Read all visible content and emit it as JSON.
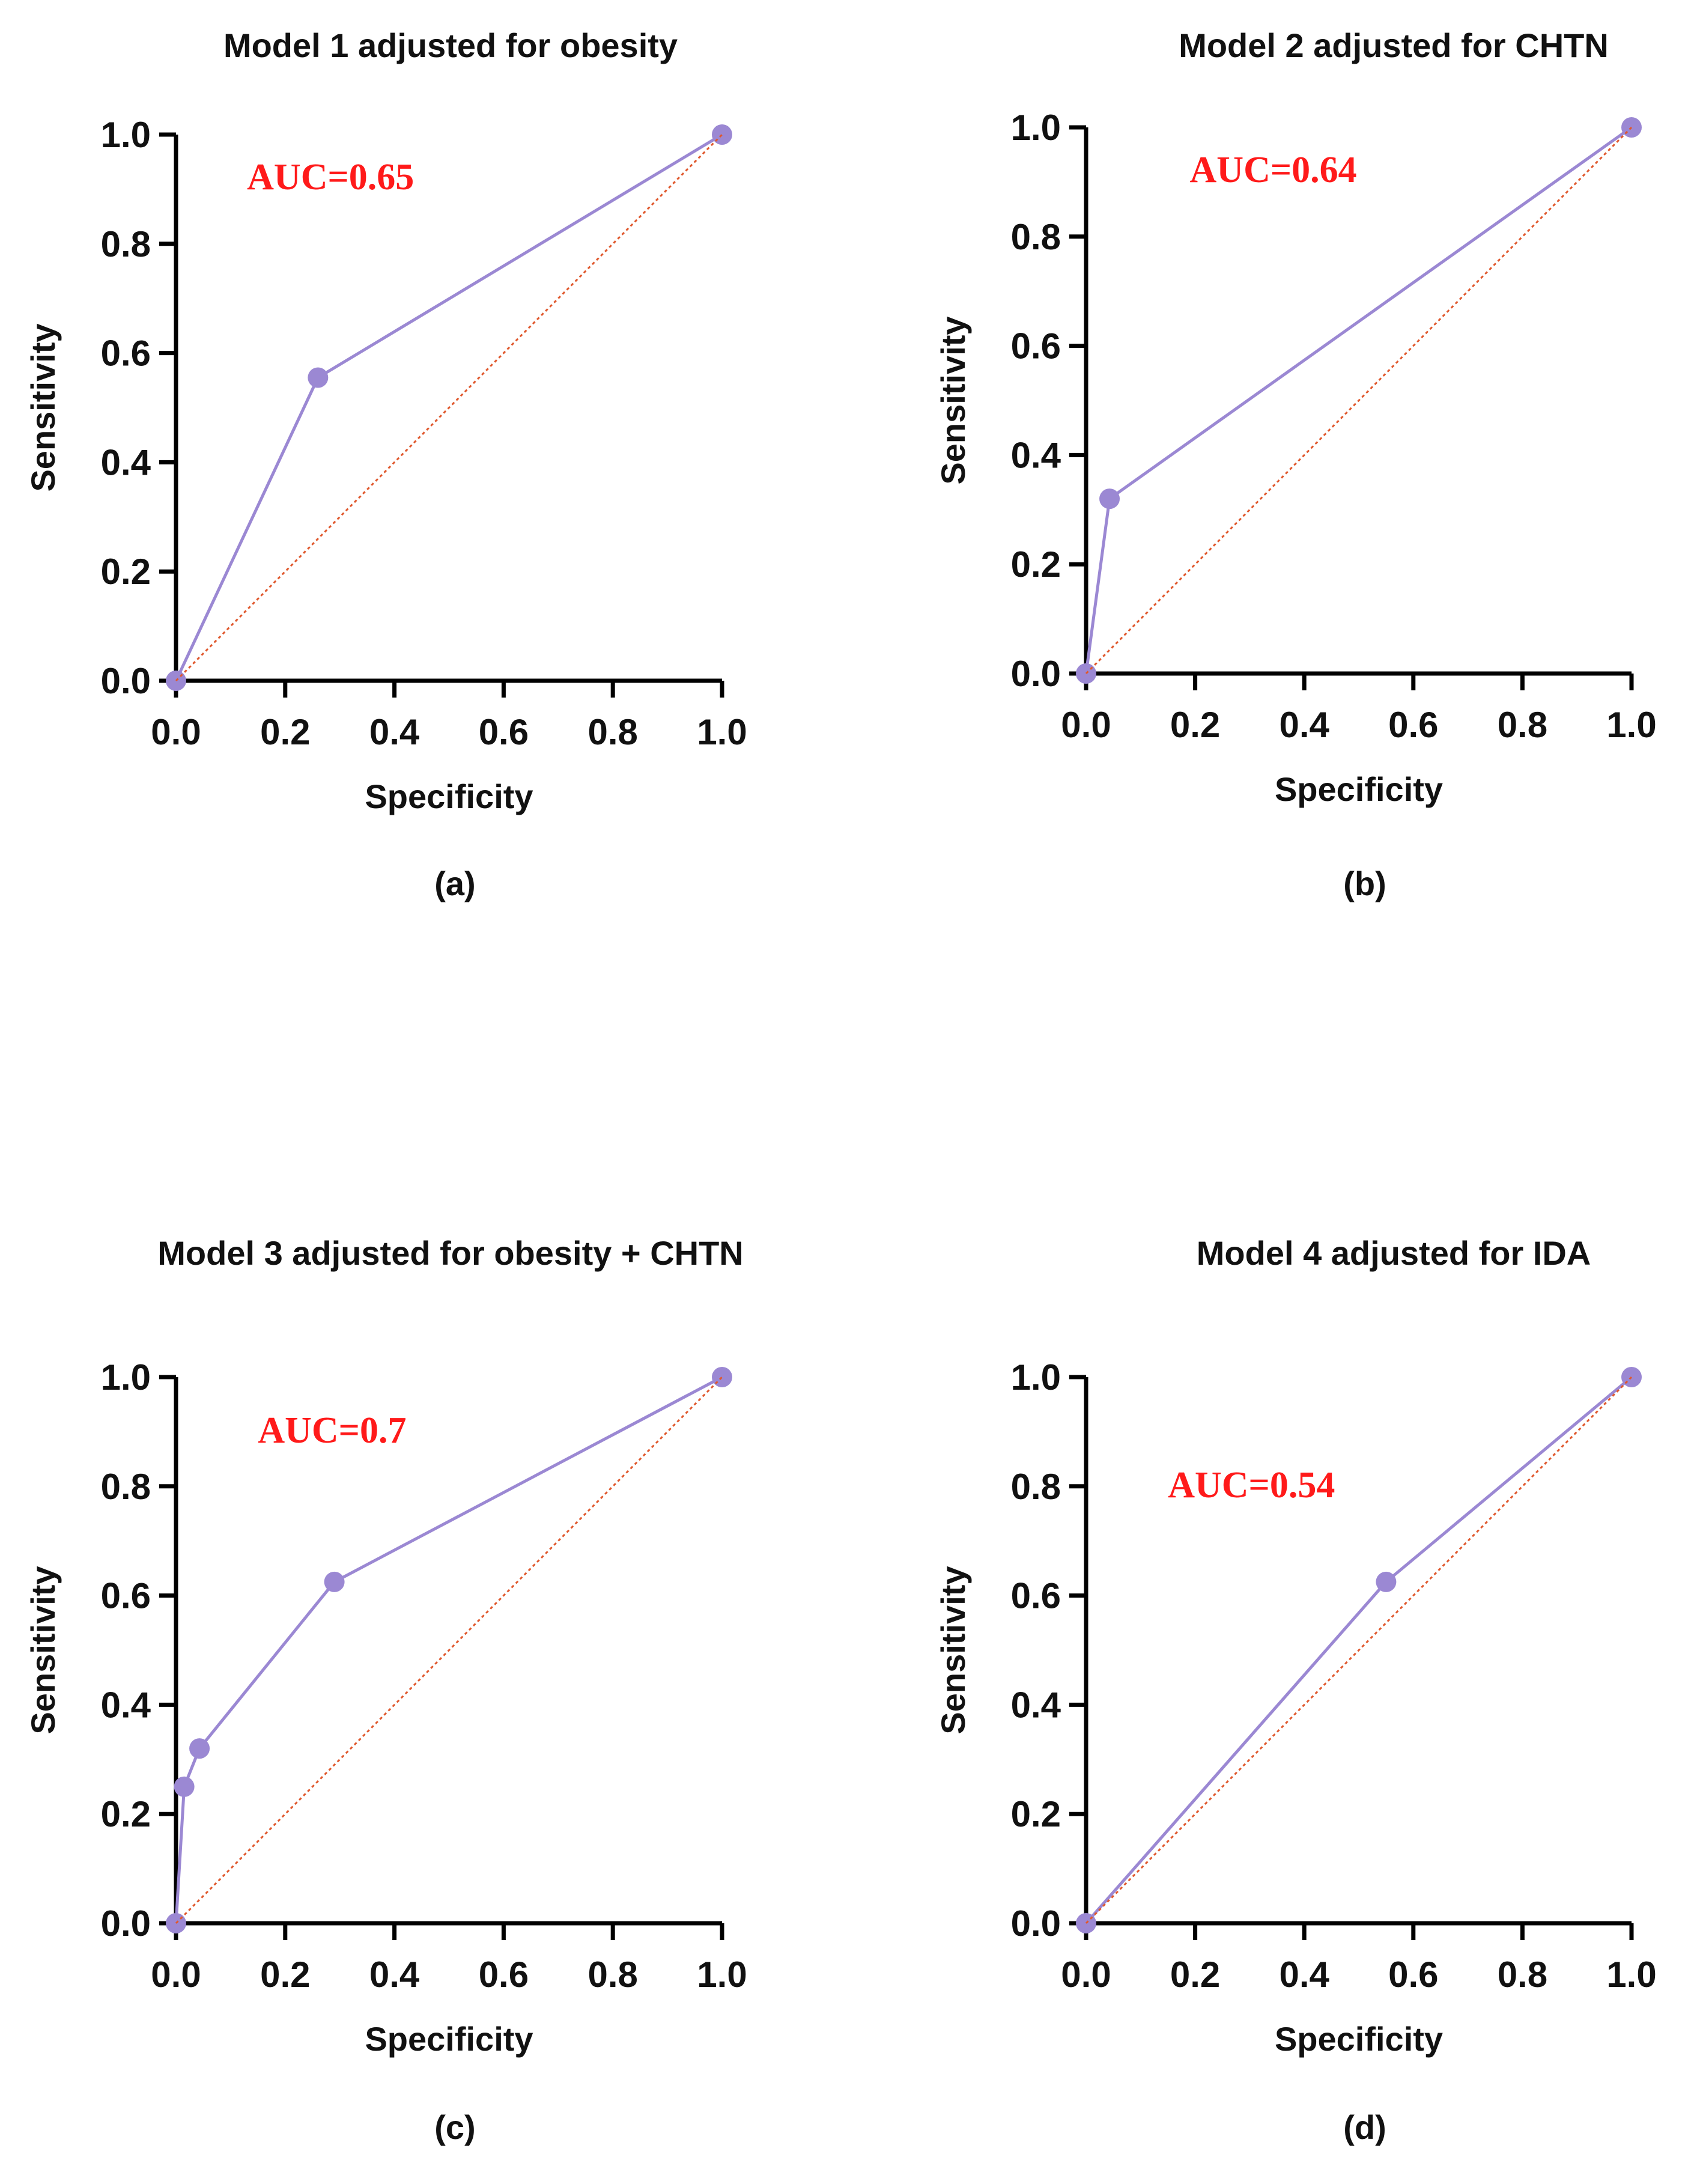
{
  "colors": {
    "roc_line": "#9b88d3",
    "roc_marker": "#9b88d3",
    "reference_line": "#e0582d",
    "auc_text": "#ff1a1a",
    "axis": "#000000"
  },
  "chart_data": [
    {
      "type": "line",
      "panel": "(a)",
      "title": "Model 1 adjusted for obesity",
      "xlabel": "Specificity",
      "ylabel": "Sensitivity",
      "xlim": [
        0,
        1
      ],
      "ylim": [
        0,
        1
      ],
      "x_ticks": [
        "0.0",
        "0.2",
        "0.4",
        "0.6",
        "0.8",
        "1.0"
      ],
      "y_ticks": [
        "0.0",
        "0.2",
        "0.4",
        "0.6",
        "0.8",
        "1.0"
      ],
      "annotation": "AUC=0.65",
      "annotation_pos": [
        0.13,
        0.9
      ],
      "series": [
        {
          "name": "ROC",
          "x": [
            0,
            0.26,
            1.0
          ],
          "y": [
            0,
            0.555,
            1.0
          ]
        },
        {
          "name": "Reference",
          "x": [
            0,
            1
          ],
          "y": [
            0,
            1
          ]
        }
      ]
    },
    {
      "type": "line",
      "panel": "(b)",
      "title": "Model 2 adjusted for CHTN",
      "xlabel": "Specificity",
      "ylabel": "Sensitivity",
      "xlim": [
        0,
        1
      ],
      "ylim": [
        0,
        1
      ],
      "x_ticks": [
        "0.0",
        "0.2",
        "0.4",
        "0.6",
        "0.8",
        "1.0"
      ],
      "y_ticks": [
        "0.0",
        "0.2",
        "0.4",
        "0.6",
        "0.8",
        "1.0"
      ],
      "annotation": "AUC=0.64",
      "annotation_pos": [
        0.19,
        0.9
      ],
      "series": [
        {
          "name": "ROC",
          "x": [
            0,
            0.043,
            1.0
          ],
          "y": [
            0,
            0.32,
            1.0
          ]
        },
        {
          "name": "Reference",
          "x": [
            0,
            1
          ],
          "y": [
            0,
            1
          ]
        }
      ]
    },
    {
      "type": "line",
      "panel": "(c)",
      "title": "Model 3 adjusted for obesity + CHTN",
      "xlabel": "Specificity",
      "ylabel": "Sensitivity",
      "xlim": [
        0,
        1
      ],
      "ylim": [
        0,
        1
      ],
      "x_ticks": [
        "0.0",
        "0.2",
        "0.4",
        "0.6",
        "0.8",
        "1.0"
      ],
      "y_ticks": [
        "0.0",
        "0.2",
        "0.4",
        "0.6",
        "0.8",
        "1.0"
      ],
      "annotation": "AUC=0.7",
      "annotation_pos": [
        0.15,
        0.88
      ],
      "series": [
        {
          "name": "ROC",
          "x": [
            0,
            0.015,
            0.043,
            0.29,
            1.0
          ],
          "y": [
            0,
            0.25,
            0.32,
            0.625,
            1.0
          ]
        },
        {
          "name": "Reference",
          "x": [
            0,
            1
          ],
          "y": [
            0,
            1
          ]
        }
      ]
    },
    {
      "type": "line",
      "panel": "(d)",
      "title": "Model 4 adjusted for IDA",
      "xlabel": "Specificity",
      "ylabel": "Sensitivity",
      "xlim": [
        0,
        1
      ],
      "ylim": [
        0,
        1
      ],
      "x_ticks": [
        "0.0",
        "0.2",
        "0.4",
        "0.6",
        "0.8",
        "1.0"
      ],
      "y_ticks": [
        "0.0",
        "0.2",
        "0.4",
        "0.6",
        "0.8",
        "1.0"
      ],
      "annotation": "AUC=0.54",
      "annotation_pos": [
        0.15,
        0.78
      ],
      "series": [
        {
          "name": "ROC",
          "x": [
            0,
            0.55,
            1.0
          ],
          "y": [
            0,
            0.625,
            1.0
          ]
        },
        {
          "name": "Reference",
          "x": [
            0,
            1
          ],
          "y": [
            0,
            1
          ]
        }
      ]
    }
  ]
}
